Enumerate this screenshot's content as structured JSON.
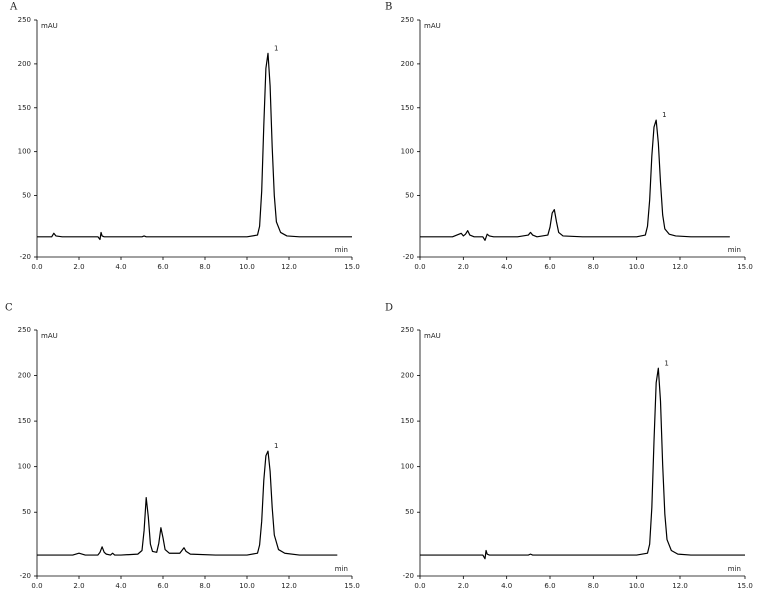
{
  "chart_data": [
    {
      "type": "line",
      "panel": "A",
      "y_label": "mAU",
      "x_label": "min",
      "annotation": "1",
      "color": "#000000",
      "x": [
        0,
        0.7,
        0.8,
        0.9,
        1.2,
        2.0,
        2.9,
        3.0,
        3.05,
        3.1,
        3.2,
        4.0,
        5.0,
        5.1,
        5.2,
        7.0,
        9.0,
        10.0,
        10.5,
        10.6,
        10.7,
        10.8,
        10.9,
        11.0,
        11.1,
        11.2,
        11.3,
        11.4,
        11.6,
        11.9,
        12.5,
        15.0
      ],
      "values": [
        3,
        3,
        7,
        4,
        3,
        3,
        3,
        0,
        8,
        4,
        3,
        3,
        3,
        4,
        3,
        3,
        3,
        3,
        5,
        15,
        55,
        130,
        195,
        212,
        175,
        105,
        50,
        20,
        8,
        4,
        3,
        3
      ],
      "xlim": [
        0,
        15
      ],
      "ylim": [
        -20,
        250
      ],
      "xticks": [
        {
          "value": 0,
          "label": "0.0"
        },
        {
          "value": 2,
          "label": "2.0"
        },
        {
          "value": 4,
          "label": "4.0"
        },
        {
          "value": 6,
          "label": "6.0"
        },
        {
          "value": 8,
          "label": "8.0"
        },
        {
          "value": 10,
          "label": "10.0"
        },
        {
          "value": 12,
          "label": "12.0"
        },
        {
          "value": 15,
          "label": "15.0"
        }
      ],
      "yticks": [
        -20,
        50,
        100,
        150,
        200,
        250
      ]
    },
    {
      "type": "line",
      "panel": "B",
      "y_label": "mAU",
      "x_label": "min",
      "annotation": "1",
      "color": "#000000",
      "x": [
        0,
        1.5,
        1.8,
        1.9,
        2.0,
        2.1,
        2.2,
        2.3,
        2.5,
        2.9,
        3.0,
        3.1,
        3.2,
        3.4,
        4.5,
        5.0,
        5.1,
        5.2,
        5.4,
        5.9,
        6.0,
        6.1,
        6.2,
        6.3,
        6.4,
        6.6,
        7.5,
        9.0,
        10.0,
        10.4,
        10.5,
        10.6,
        10.7,
        10.8,
        10.9,
        11.0,
        11.1,
        11.2,
        11.3,
        11.5,
        11.8,
        12.5,
        14.3
      ],
      "values": [
        3,
        3,
        6,
        7,
        4,
        6,
        10,
        5,
        3,
        3,
        -1,
        6,
        4,
        3,
        3,
        5,
        8,
        5,
        3,
        5,
        14,
        30,
        34,
        20,
        8,
        4,
        3,
        3,
        3,
        5,
        15,
        45,
        95,
        128,
        136,
        110,
        65,
        28,
        12,
        6,
        4,
        3,
        3
      ],
      "xlim": [
        0,
        15
      ],
      "ylim": [
        -20,
        250
      ],
      "xticks": [
        {
          "value": 0,
          "label": "0.0"
        },
        {
          "value": 2,
          "label": "2.0"
        },
        {
          "value": 4,
          "label": "4.0"
        },
        {
          "value": 6,
          "label": "6.0"
        },
        {
          "value": 8,
          "label": "8.0"
        },
        {
          "value": 10,
          "label": "10.0"
        },
        {
          "value": 12,
          "label": "12.0"
        },
        {
          "value": 15,
          "label": "15.0"
        }
      ],
      "yticks": [
        -20,
        50,
        100,
        150,
        200,
        250
      ]
    },
    {
      "type": "line",
      "panel": "C",
      "y_label": "mAU",
      "x_label": "min",
      "annotation": "1",
      "color": "#000000",
      "x": [
        0,
        1.7,
        2.0,
        2.3,
        2.9,
        3.0,
        3.1,
        3.2,
        3.3,
        3.5,
        3.6,
        3.7,
        4.0,
        4.8,
        5.0,
        5.1,
        5.2,
        5.3,
        5.4,
        5.5,
        5.7,
        5.8,
        5.9,
        6.0,
        6.1,
        6.3,
        6.8,
        6.9,
        7.0,
        7.1,
        7.3,
        8.5,
        10.0,
        10.5,
        10.6,
        10.7,
        10.8,
        10.9,
        11.0,
        11.1,
        11.2,
        11.3,
        11.5,
        11.8,
        12.5,
        14.3
      ],
      "values": [
        3,
        3,
        5,
        3,
        3,
        6,
        12,
        6,
        4,
        3,
        5,
        3,
        3,
        4,
        8,
        30,
        66,
        45,
        15,
        7,
        6,
        16,
        33,
        22,
        9,
        5,
        5,
        8,
        11,
        7,
        4,
        3,
        3,
        5,
        14,
        40,
        85,
        112,
        117,
        95,
        55,
        25,
        9,
        5,
        3,
        3
      ],
      "xlim": [
        0,
        15
      ],
      "ylim": [
        -20,
        250
      ],
      "xticks": [
        {
          "value": 0,
          "label": "0.0"
        },
        {
          "value": 2,
          "label": "2.0"
        },
        {
          "value": 4,
          "label": "4.0"
        },
        {
          "value": 6,
          "label": "6.0"
        },
        {
          "value": 8,
          "label": "8.0"
        },
        {
          "value": 10,
          "label": "10.0"
        },
        {
          "value": 12,
          "label": "12.0"
        },
        {
          "value": 15,
          "label": "15.0"
        }
      ],
      "yticks": [
        -20,
        50,
        100,
        150,
        200,
        250
      ]
    },
    {
      "type": "line",
      "panel": "D",
      "y_label": "mAU",
      "x_label": "min",
      "annotation": "1",
      "color": "#000000",
      "x": [
        0,
        2.0,
        2.9,
        3.0,
        3.05,
        3.1,
        3.2,
        4.0,
        5.0,
        5.1,
        5.2,
        7.0,
        9.0,
        10.0,
        10.5,
        10.6,
        10.7,
        10.8,
        10.9,
        11.0,
        11.1,
        11.2,
        11.3,
        11.4,
        11.6,
        11.9,
        12.5,
        15.0
      ],
      "values": [
        3,
        3,
        3,
        -1,
        8,
        4,
        3,
        3,
        3,
        4,
        3,
        3,
        3,
        3,
        5,
        15,
        55,
        128,
        192,
        208,
        172,
        102,
        48,
        20,
        8,
        4,
        3,
        3
      ],
      "xlim": [
        0,
        15
      ],
      "ylim": [
        -20,
        250
      ],
      "xticks": [
        {
          "value": 0,
          "label": "0.0"
        },
        {
          "value": 2,
          "label": "2.0"
        },
        {
          "value": 4,
          "label": "4.0"
        },
        {
          "value": 6,
          "label": "6.0"
        },
        {
          "value": 8,
          "label": "8.0"
        },
        {
          "value": 10,
          "label": "10.0"
        },
        {
          "value": 12,
          "label": "12.0"
        },
        {
          "value": 15,
          "label": "15.0"
        }
      ],
      "yticks": [
        -20,
        50,
        100,
        150,
        200,
        250
      ]
    }
  ]
}
